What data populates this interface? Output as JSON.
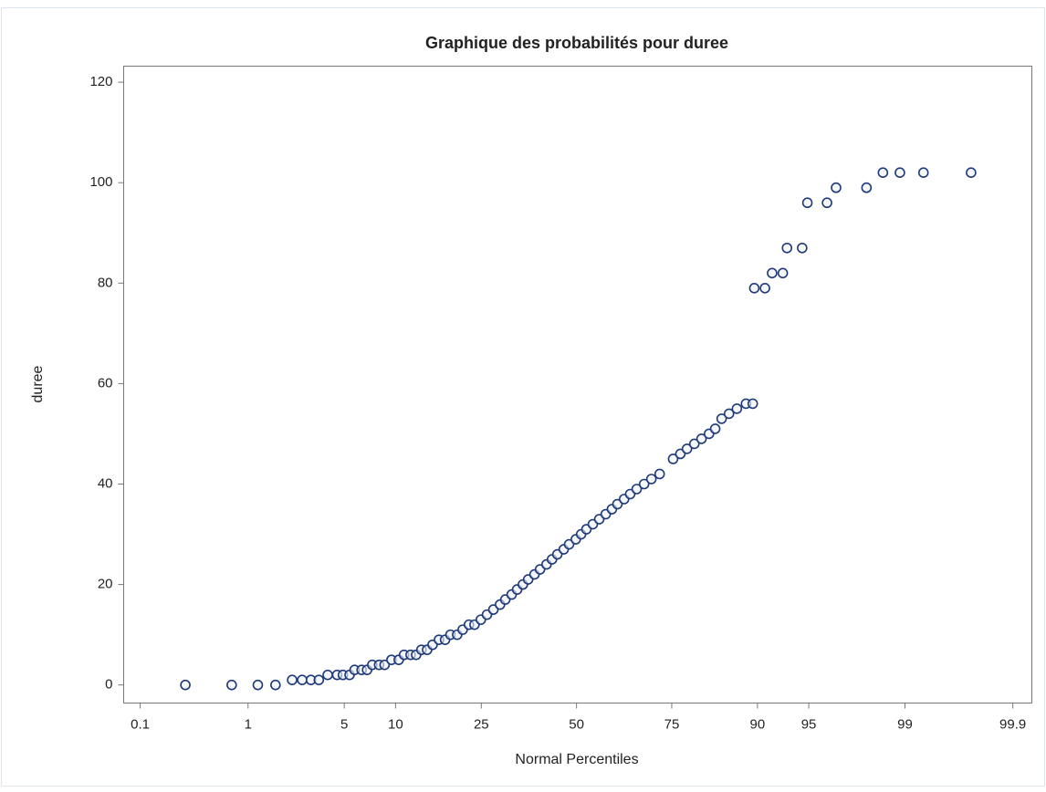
{
  "chart_data": {
    "type": "scatter",
    "title": "Graphique des probabilités pour duree",
    "x_label": "Normal Percentiles",
    "y_label": "duree",
    "xscale": "normal",
    "xlim": [
      0.067,
      99.937
    ],
    "xticks": [
      0.1,
      1,
      5,
      10,
      25,
      50,
      75,
      90,
      95,
      99,
      99.9
    ],
    "ylim": [
      -3.6,
      123.2
    ],
    "yticks": [
      0,
      20,
      40,
      60,
      80,
      100,
      120
    ],
    "color": "#1f3a7a",
    "series": [
      {
        "name": "duree",
        "color": "#1f3a7a",
        "x": [
          0.28,
          0.73,
          1.2,
          1.65,
          2.2,
          2.6,
          3.0,
          3.4,
          3.9,
          4.5,
          4.9,
          5.4,
          5.8,
          6.4,
          6.9,
          7.4,
          8.1,
          8.7,
          9.5,
          10.4,
          11.1,
          12.0,
          12.8,
          13.6,
          14.5,
          15.4,
          16.5,
          17.6,
          18.6,
          19.9,
          21.0,
          22.3,
          23.5,
          24.9,
          26.3,
          27.8,
          29.4,
          30.7,
          32.3,
          33.7,
          35.2,
          36.6,
          38.3,
          39.8,
          41.6,
          43.1,
          44.6,
          46.4,
          47.9,
          49.8,
          51.3,
          52.8,
          54.6,
          56.4,
          58.2,
          59.9,
          61.4,
          63.2,
          64.8,
          66.5,
          68.4,
          70.2,
          72.2,
          75.3,
          76.9,
          78.3,
          79.8,
          81.2,
          82.6,
          83.7,
          84.8,
          86.0,
          87.2,
          88.5,
          89.4,
          89.6,
          90.9,
          91.7,
          92.8,
          93.2,
          94.5,
          94.9,
          96.2,
          96.7,
          98.0,
          98.5,
          98.9,
          99.3,
          99.74
        ],
        "values": [
          0,
          0,
          0,
          0,
          1,
          1,
          1,
          1,
          2,
          2,
          2,
          2,
          3,
          3,
          3,
          4,
          4,
          4,
          5,
          5,
          6,
          6,
          6,
          7,
          7,
          8,
          9,
          9,
          10,
          10,
          11,
          12,
          12,
          13,
          14,
          15,
          16,
          17,
          18,
          19,
          20,
          21,
          22,
          23,
          24,
          25,
          26,
          27,
          28,
          29,
          30,
          31,
          32,
          33,
          34,
          35,
          36,
          37,
          38,
          39,
          40,
          41,
          42,
          45,
          46,
          47,
          48,
          49,
          50,
          51,
          53,
          54,
          55,
          56,
          56,
          79,
          79,
          82,
          82,
          87,
          87,
          96,
          96,
          99,
          99,
          102,
          102,
          102,
          102
        ]
      }
    ]
  }
}
